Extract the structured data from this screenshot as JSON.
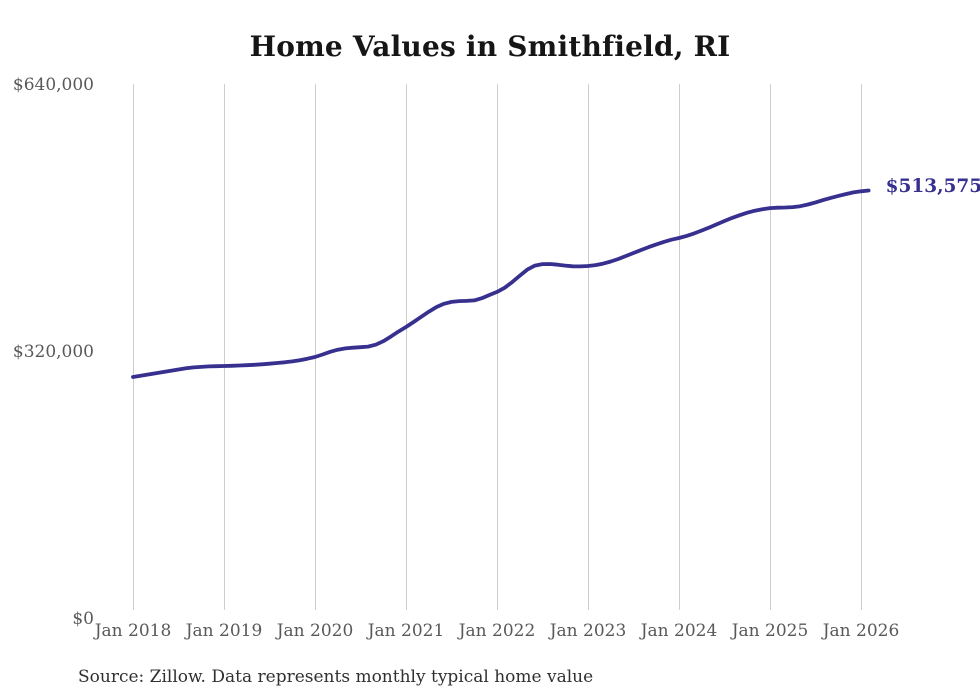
{
  "title": "Home Values in Smithfield, RI",
  "end_label": "$513,575",
  "source_note": "Source: Zillow. Data represents monthly typical home value",
  "colors": {
    "line": "#37308f",
    "grid": "#cdcdcd",
    "axis_label": "#595959",
    "title": "#161616",
    "source": "#303030",
    "background": "#ffffff"
  },
  "chart_data": {
    "type": "line",
    "title": "Home Values in Smithfield, RI",
    "unit": "USD",
    "frequency": "monthly",
    "start_month": "Jan 2018",
    "end_month": "Feb 2026",
    "grid": "vertical",
    "legend": false,
    "ylim": [
      0,
      640000
    ],
    "y_tick_values": [
      0,
      320000,
      640000
    ],
    "y_tick_labels": [
      "$0",
      "$320,000",
      "$640,000"
    ],
    "x_tick_labels": [
      "Jan 2018",
      "Jan 2019",
      "Jan 2020",
      "Jan 2021",
      "Jan 2022",
      "Jan 2023",
      "Jan 2024",
      "Jan 2025",
      "Jan 2026"
    ],
    "latest_value": 513575,
    "series": [
      {
        "name": "Typical home value",
        "values": [
          290000,
          291500,
          293000,
          294500,
          296000,
          297500,
          299000,
          300500,
          301500,
          302200,
          302700,
          303000,
          303200,
          303500,
          303800,
          304200,
          304700,
          305300,
          306000,
          306800,
          307700,
          308700,
          310200,
          312000,
          314000,
          317000,
          320200,
          322800,
          324300,
          325200,
          325700,
          326500,
          328800,
          333000,
          338500,
          344500,
          350000,
          356000,
          362200,
          368300,
          373800,
          377800,
          380000,
          381000,
          381300,
          381800,
          384500,
          388300,
          392000,
          397000,
          403800,
          411500,
          418800,
          423500,
          425400,
          425500,
          424600,
          423500,
          422700,
          422600,
          423100,
          424200,
          426000,
          428500,
          431500,
          435000,
          438600,
          442200,
          445700,
          449000,
          452000,
          454600,
          456600,
          459200,
          462200,
          465600,
          469200,
          473000,
          477000,
          480700,
          484000,
          486900,
          489300,
          491200,
          492500,
          493000,
          493200,
          493700,
          494800,
          496800,
          499300,
          502000,
          504700,
          507100,
          509300,
          511300,
          512600,
          513575
        ]
      }
    ]
  }
}
